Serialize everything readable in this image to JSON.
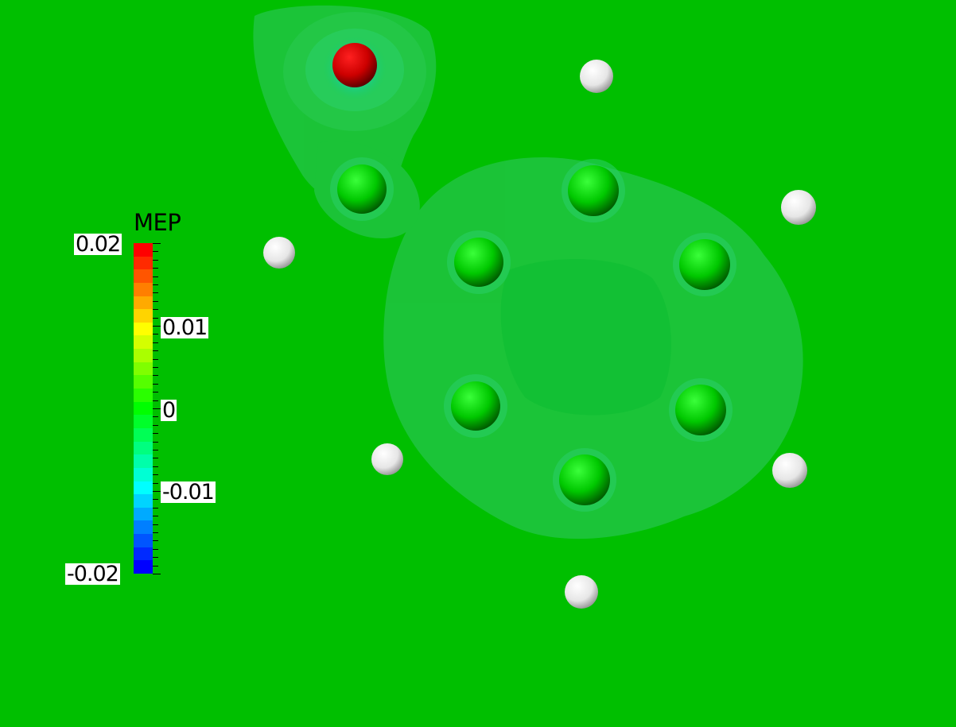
{
  "colorbar": {
    "title": "MEP",
    "labels": [
      {
        "text": "0.02",
        "value": 0.02
      },
      {
        "text": "0.01",
        "value": 0.01
      },
      {
        "text": "0",
        "value": 0
      },
      {
        "text": "-0.01",
        "value": -0.01
      },
      {
        "text": "-0.02",
        "value": -0.02
      }
    ],
    "range": [
      -0.02,
      0.02
    ],
    "colors": [
      "#ff0000",
      "#ff2a00",
      "#ff5500",
      "#ff7f00",
      "#ffaa00",
      "#ffd400",
      "#ffff00",
      "#d4ff00",
      "#aaff00",
      "#7fff00",
      "#55ff00",
      "#2aff00",
      "#00ff00",
      "#00ff2a",
      "#00ff55",
      "#00ff7f",
      "#00ffaa",
      "#00ffd4",
      "#00ffff",
      "#00d4ff",
      "#00aaff",
      "#007fff",
      "#0055ff",
      "#002aff",
      "#0000ff"
    ]
  },
  "scene": {
    "background": "#00bf00",
    "isosurface_color": "#1fc23a",
    "atom_colors": {
      "carbon": "#00cc00",
      "hydrogen": "#ffffff",
      "oxygen": "#ff0000"
    }
  }
}
